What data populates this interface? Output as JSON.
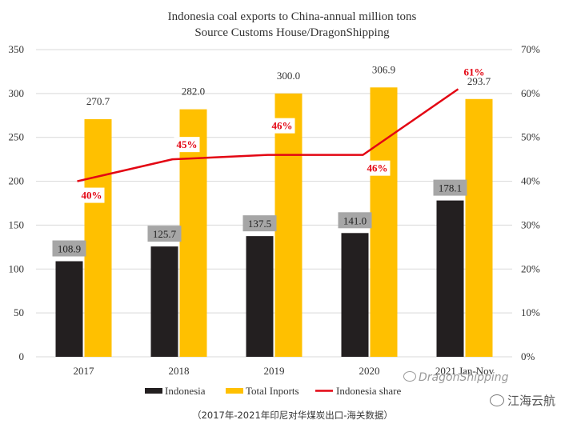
{
  "chart_data": {
    "type": "bar",
    "title": "Indonesia coal exports to China-annual million tons",
    "subtitle": "Source Customs House/DragonShipping",
    "categories": [
      "2017",
      "2018",
      "2019",
      "2020",
      "2021 Jan-Nov"
    ],
    "series": [
      {
        "name": "Indonesia",
        "type": "bar",
        "color": "#231f20",
        "axis": "left",
        "values": [
          108.9,
          125.7,
          137.5,
          141.0,
          178.1
        ],
        "labels": [
          "108.9",
          "125.7",
          "137.5",
          "141.0",
          "178.1"
        ]
      },
      {
        "name": "Total Inports",
        "type": "bar",
        "color": "#ffc000",
        "axis": "left",
        "values": [
          270.7,
          282.0,
          300.0,
          306.9,
          293.7
        ],
        "labels": [
          "270.7",
          "282.0",
          "300.0",
          "306.9",
          "293.7"
        ]
      },
      {
        "name": "Indonesia share",
        "type": "line",
        "color": "#e30613",
        "axis": "right",
        "values": [
          40,
          45,
          46,
          46,
          61
        ],
        "labels": [
          "40%",
          "45%",
          "46%",
          "46%",
          "61%"
        ]
      }
    ],
    "ylim": [
      0,
      350
    ],
    "yticks": [
      "0",
      "50",
      "100",
      "150",
      "200",
      "250",
      "300",
      "350"
    ],
    "y2lim": [
      0,
      70
    ],
    "y2ticks": [
      "0%",
      "10%",
      "20%",
      "30%",
      "40%",
      "50%",
      "60%",
      "70%"
    ],
    "grid": true,
    "legend_position": "bottom"
  },
  "watermark": {
    "brand": "DragonShipping",
    "account": "江海云航"
  },
  "footnote": "（2017年-2021年印尼对华煤炭出口-海关数据）"
}
